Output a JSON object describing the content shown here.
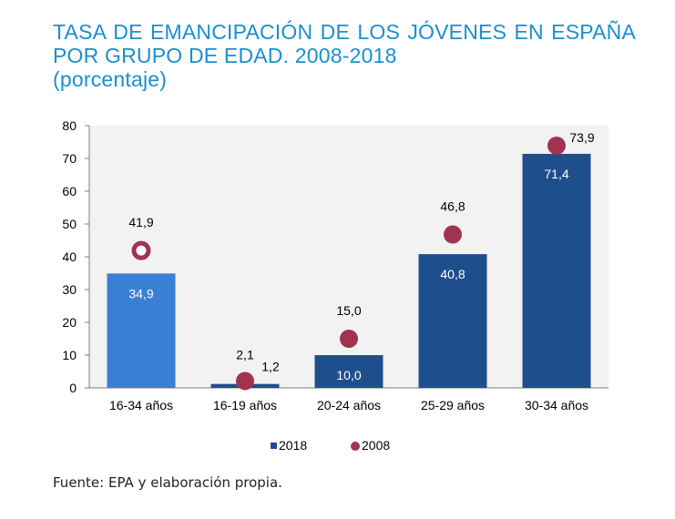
{
  "title": {
    "line1": "TASA DE EMANCIPACIÓN DE LOS JÓVENES EN ESPAÑA",
    "line2": "POR GRUPO DE EDAD. 2008-2018",
    "line3": "(porcentaje)"
  },
  "source": "Fuente: EPA y elaboración propia.",
  "chart_data": {
    "type": "bar",
    "categories": [
      "16-34 años",
      "16-19 años",
      "20-24 años",
      "25-29 años",
      "30-34 años"
    ],
    "series": [
      {
        "name": "2018",
        "kind": "bar",
        "values": [
          34.9,
          1.2,
          10.0,
          40.8,
          71.4
        ],
        "labels": [
          "34,9",
          "1,2",
          "10,0",
          "40,8",
          "71,4"
        ]
      },
      {
        "name": "2008",
        "kind": "marker",
        "values": [
          41.9,
          2.1,
          15.0,
          46.8,
          73.9
        ],
        "labels": [
          "41,9",
          "2,1",
          "15,0",
          "46,8",
          "73,9"
        ]
      }
    ],
    "ylim": [
      0,
      80
    ],
    "yticks": [
      0,
      10,
      20,
      30,
      40,
      50,
      60,
      70,
      80
    ],
    "legend": [
      "2018",
      "2008"
    ],
    "legend_position": "bottom-center",
    "colors": {
      "bar": "#1f4e8c",
      "bar_highlight": "#3a7fd5",
      "marker": "#a2334e",
      "plot_bg": "#f2f2f2",
      "axis": "#7f7f7f"
    }
  }
}
